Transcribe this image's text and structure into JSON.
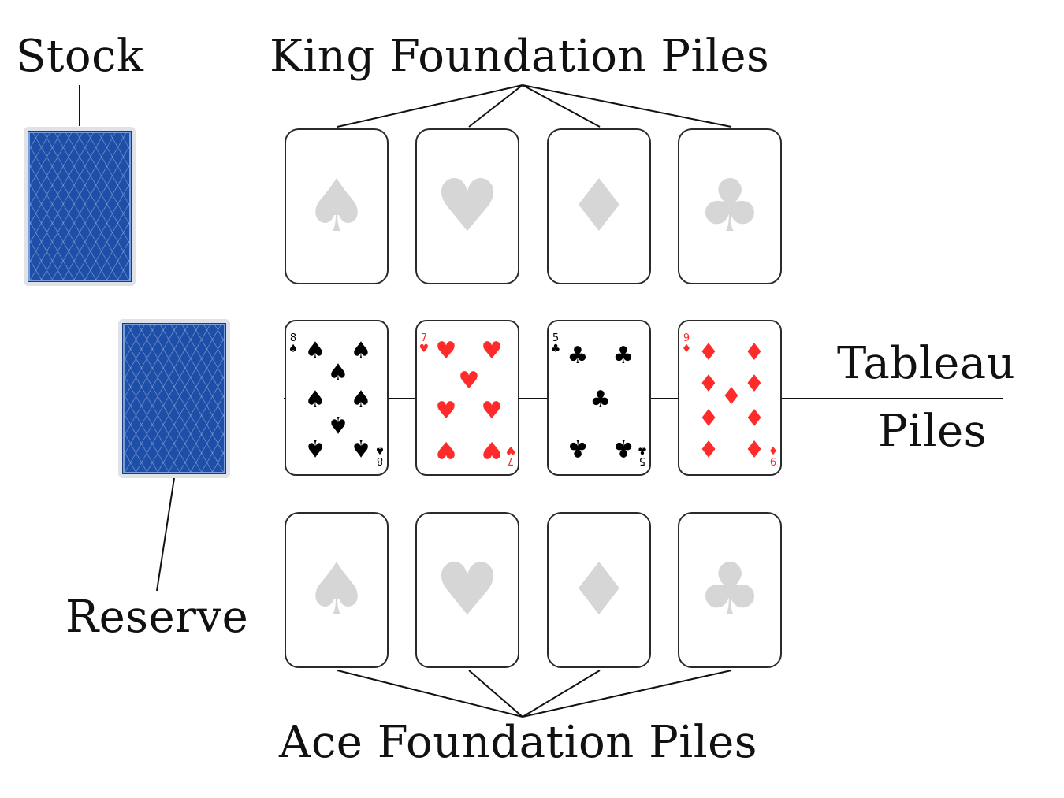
{
  "labels": {
    "stock": "Stock",
    "king_foundation": "King Foundation Piles",
    "tableau_line1": "Tableau",
    "tableau_line2": "Piles",
    "reserve": "Reserve",
    "ace_foundation": "Ace Foundation Piles"
  },
  "colors": {
    "card_back": "#1e4fa8",
    "red_suit": "#ff2b2b",
    "black_suit": "#000000",
    "empty_suit": "#d6d6d6"
  },
  "king_foundation": [
    {
      "suit": "spade-icon",
      "glyph": "♠"
    },
    {
      "suit": "heart-icon",
      "glyph": "♥"
    },
    {
      "suit": "diamond-icon",
      "glyph": "♦"
    },
    {
      "suit": "club-icon",
      "glyph": "♣"
    }
  ],
  "ace_foundation": [
    {
      "suit": "spade-icon",
      "glyph": "♠"
    },
    {
      "suit": "heart-icon",
      "glyph": "♥"
    },
    {
      "suit": "diamond-icon",
      "glyph": "♦"
    },
    {
      "suit": "club-icon",
      "glyph": "♣"
    }
  ],
  "tableau": [
    {
      "rank": "8",
      "suit": "spade-icon",
      "glyph": "♠",
      "color": "black"
    },
    {
      "rank": "7",
      "suit": "heart-icon",
      "glyph": "♥",
      "color": "red"
    },
    {
      "rank": "5",
      "suit": "club-icon",
      "glyph": "♣",
      "color": "black"
    },
    {
      "rank": "9",
      "suit": "diamond-icon",
      "glyph": "♦",
      "color": "red"
    }
  ]
}
